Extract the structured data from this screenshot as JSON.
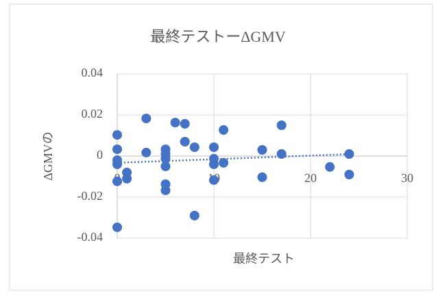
{
  "chart_data": {
    "type": "scatter",
    "title": "最終テストーΔGMV",
    "x_label": "最終テスト",
    "y_label": "ΔGMVの",
    "color": "#4472c4",
    "grid": true,
    "trendline": true,
    "xlim": [
      0,
      30
    ],
    "xticks": [
      0,
      10,
      20,
      30
    ],
    "ylim": [
      -0.04,
      0.04
    ],
    "yticks": [
      0.04,
      0.02,
      0,
      -0.02,
      -0.04
    ],
    "x": [
      0,
      0,
      0,
      0,
      0,
      0,
      1,
      1,
      3,
      3,
      5,
      5,
      5,
      5,
      5,
      5,
      6,
      7,
      7,
      8,
      8,
      10,
      10,
      10,
      10,
      11,
      11,
      15,
      15,
      17,
      17,
      22,
      24,
      24
    ],
    "values": [
      0.0103,
      0.0033,
      -0.002,
      -0.004,
      -0.0123,
      -0.0347,
      -0.008,
      -0.011,
      0.0183,
      0.0017,
      0.0033,
      0.001,
      -0.0013,
      -0.005,
      -0.0137,
      -0.0167,
      0.0163,
      0.0157,
      0.007,
      0.0043,
      -0.029,
      0.0043,
      -0.0013,
      -0.004,
      -0.0117,
      0.0127,
      -0.0033,
      0.003,
      -0.0103,
      0.015,
      0.001,
      -0.0053,
      0.001,
      -0.009
    ]
  }
}
